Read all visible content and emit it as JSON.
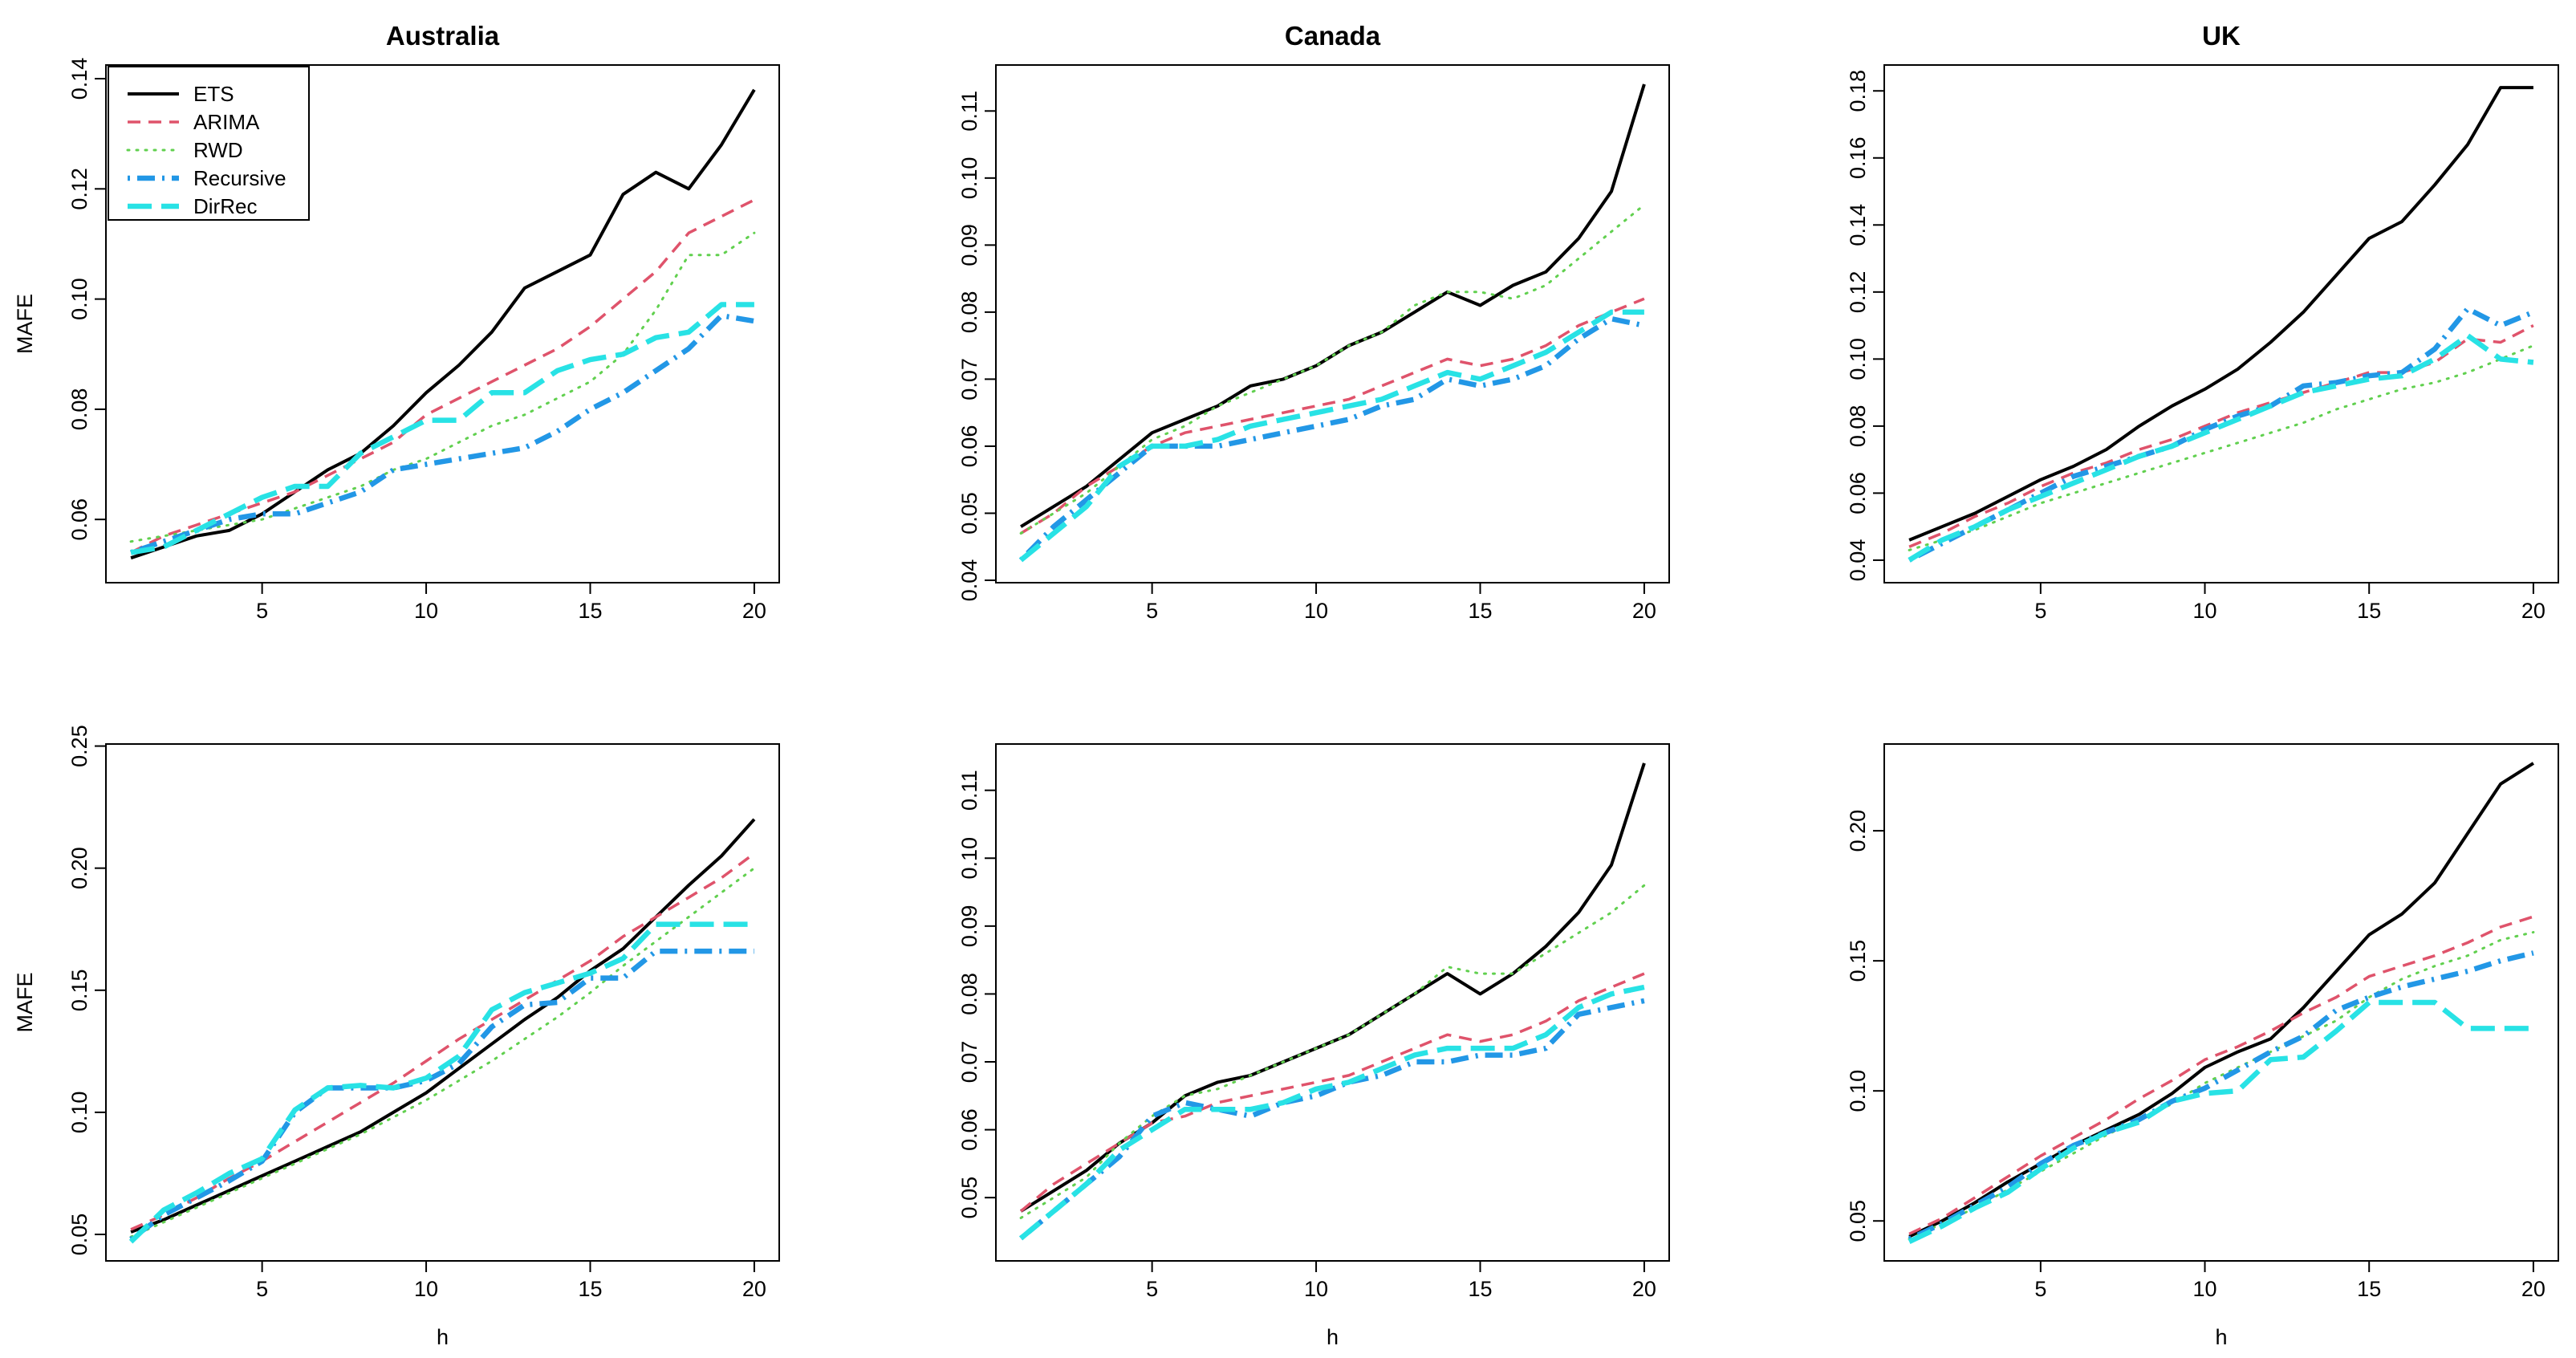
{
  "figure": {
    "ylabel": "MAFE",
    "xlabel": "h"
  },
  "legend": {
    "entries": [
      {
        "name": "ETS",
        "color": "#000000",
        "dash": "solid"
      },
      {
        "name": "ARIMA",
        "color": "#DF536B",
        "dash": "dashed"
      },
      {
        "name": "RWD",
        "color": "#61D04F",
        "dash": "dotted"
      },
      {
        "name": "Recursive",
        "color": "#2297E6",
        "dash": "dotdash"
      },
      {
        "name": "DirRec",
        "color": "#28E2E5",
        "dash": "longdash"
      }
    ]
  },
  "chart_data": [
    {
      "type": "line",
      "title": "Australia",
      "xlabel": "",
      "ylabel": "MAFE",
      "x": [
        1,
        2,
        3,
        4,
        5,
        6,
        7,
        8,
        9,
        10,
        11,
        12,
        13,
        14,
        15,
        16,
        17,
        18,
        19,
        20
      ],
      "xlim": [
        1,
        20
      ],
      "xticks": [
        "5",
        "10",
        "15",
        "20"
      ],
      "ylim": [
        0.052,
        0.139
      ],
      "yticks": [
        "0.06",
        "0.08",
        "0.10",
        "0.12",
        "0.14"
      ],
      "legend": true,
      "series": [
        {
          "name": "ETS",
          "values": [
            0.053,
            0.055,
            0.057,
            0.058,
            0.061,
            0.065,
            0.069,
            0.072,
            0.077,
            0.083,
            0.088,
            0.094,
            0.102,
            0.105,
            0.108,
            0.119,
            0.123,
            0.12,
            0.128,
            0.138
          ]
        },
        {
          "name": "ARIMA",
          "values": [
            0.054,
            0.057,
            0.059,
            0.061,
            0.063,
            0.065,
            0.068,
            0.071,
            0.074,
            0.079,
            0.082,
            0.085,
            0.088,
            0.091,
            0.095,
            0.1,
            0.105,
            0.112,
            0.115,
            0.118
          ]
        },
        {
          "name": "RWD",
          "values": [
            0.056,
            0.057,
            0.058,
            0.059,
            0.06,
            0.062,
            0.064,
            0.066,
            0.069,
            0.071,
            0.074,
            0.077,
            0.079,
            0.082,
            0.085,
            0.09,
            0.098,
            0.108,
            0.108,
            0.112
          ]
        },
        {
          "name": "Recursive",
          "values": [
            0.054,
            0.056,
            0.058,
            0.06,
            0.061,
            0.061,
            0.063,
            0.065,
            0.069,
            0.07,
            0.071,
            0.072,
            0.073,
            0.076,
            0.08,
            0.083,
            0.087,
            0.091,
            0.097,
            0.096
          ]
        },
        {
          "name": "DirRec",
          "values": [
            0.054,
            0.055,
            0.058,
            0.061,
            0.064,
            0.066,
            0.066,
            0.072,
            0.075,
            0.078,
            0.078,
            0.083,
            0.083,
            0.087,
            0.089,
            0.09,
            0.093,
            0.094,
            0.099,
            0.099
          ]
        }
      ]
    },
    {
      "type": "line",
      "title": "Canada",
      "xlabel": "",
      "ylabel": "",
      "x": [
        1,
        2,
        3,
        4,
        5,
        6,
        7,
        8,
        9,
        10,
        11,
        12,
        13,
        14,
        15,
        16,
        17,
        18,
        19,
        20
      ],
      "xlim": [
        1,
        20
      ],
      "xticks": [
        "5",
        "10",
        "15",
        "20"
      ],
      "ylim": [
        0.0425,
        0.114
      ],
      "yticks": [
        "0.04",
        "0.05",
        "0.06",
        "0.07",
        "0.08",
        "0.09",
        "0.10",
        "0.11"
      ],
      "legend": false,
      "series": [
        {
          "name": "ETS",
          "values": [
            0.048,
            0.051,
            0.054,
            0.058,
            0.062,
            0.064,
            0.066,
            0.069,
            0.07,
            0.072,
            0.075,
            0.077,
            0.08,
            0.083,
            0.081,
            0.084,
            0.086,
            0.091,
            0.098,
            0.114
          ]
        },
        {
          "name": "ARIMA",
          "values": [
            0.047,
            0.05,
            0.054,
            0.057,
            0.06,
            0.062,
            0.063,
            0.064,
            0.065,
            0.066,
            0.067,
            0.069,
            0.071,
            0.073,
            0.072,
            0.073,
            0.075,
            0.078,
            0.08,
            0.082
          ]
        },
        {
          "name": "RWD",
          "values": [
            0.047,
            0.05,
            0.053,
            0.057,
            0.061,
            0.063,
            0.066,
            0.068,
            0.07,
            0.072,
            0.075,
            0.077,
            0.081,
            0.083,
            0.083,
            0.082,
            0.084,
            0.088,
            0.092,
            0.096
          ]
        },
        {
          "name": "Recursive",
          "values": [
            0.043,
            0.048,
            0.052,
            0.056,
            0.06,
            0.06,
            0.06,
            0.061,
            0.062,
            0.063,
            0.064,
            0.066,
            0.067,
            0.07,
            0.069,
            0.07,
            0.072,
            0.076,
            0.079,
            0.078
          ]
        },
        {
          "name": "DirRec",
          "values": [
            0.043,
            0.047,
            0.051,
            0.057,
            0.06,
            0.06,
            0.061,
            0.063,
            0.064,
            0.065,
            0.066,
            0.067,
            0.069,
            0.071,
            0.07,
            0.072,
            0.074,
            0.077,
            0.08,
            0.08
          ]
        }
      ]
    },
    {
      "type": "line",
      "title": "UK",
      "xlabel": "",
      "ylabel": "",
      "x": [
        1,
        2,
        3,
        4,
        5,
        6,
        7,
        8,
        9,
        10,
        11,
        12,
        13,
        14,
        15,
        16,
        17,
        18,
        19,
        20
      ],
      "xlim": [
        1,
        20
      ],
      "xticks": [
        "5",
        "10",
        "15",
        "20"
      ],
      "ylim": [
        0.039,
        0.182
      ],
      "yticks": [
        "0.04",
        "0.06",
        "0.08",
        "0.10",
        "0.12",
        "0.14",
        "0.16",
        "0.18"
      ],
      "legend": false,
      "series": [
        {
          "name": "ETS",
          "values": [
            0.046,
            0.05,
            0.054,
            0.059,
            0.064,
            0.068,
            0.073,
            0.08,
            0.086,
            0.091,
            0.097,
            0.105,
            0.114,
            0.125,
            0.136,
            0.141,
            0.152,
            0.164,
            0.181,
            0.181
          ]
        },
        {
          "name": "ARIMA",
          "values": [
            0.044,
            0.048,
            0.053,
            0.057,
            0.062,
            0.066,
            0.069,
            0.073,
            0.076,
            0.08,
            0.084,
            0.087,
            0.09,
            0.093,
            0.096,
            0.096,
            0.099,
            0.106,
            0.105,
            0.11
          ]
        },
        {
          "name": "RWD",
          "values": [
            0.043,
            0.046,
            0.049,
            0.053,
            0.057,
            0.06,
            0.063,
            0.066,
            0.069,
            0.072,
            0.075,
            0.078,
            0.081,
            0.085,
            0.088,
            0.091,
            0.093,
            0.096,
            0.1,
            0.104
          ]
        },
        {
          "name": "Recursive",
          "values": [
            0.04,
            0.045,
            0.05,
            0.055,
            0.06,
            0.065,
            0.068,
            0.071,
            0.074,
            0.079,
            0.083,
            0.086,
            0.092,
            0.093,
            0.095,
            0.096,
            0.103,
            0.115,
            0.11,
            0.114
          ]
        },
        {
          "name": "DirRec",
          "values": [
            0.04,
            0.046,
            0.05,
            0.055,
            0.059,
            0.063,
            0.067,
            0.071,
            0.074,
            0.078,
            0.082,
            0.086,
            0.09,
            0.092,
            0.094,
            0.095,
            0.1,
            0.107,
            0.1,
            0.099
          ]
        }
      ]
    },
    {
      "type": "line",
      "title": "",
      "xlabel": "h",
      "ylabel": "MAFE",
      "x": [
        1,
        2,
        3,
        4,
        5,
        6,
        7,
        8,
        9,
        10,
        11,
        12,
        13,
        14,
        15,
        16,
        17,
        18,
        19,
        20
      ],
      "xlim": [
        1,
        20
      ],
      "xticks": [
        "5",
        "10",
        "15",
        "20"
      ],
      "ylim": [
        0.047,
        0.243
      ],
      "yticks": [
        "0.05",
        "0.10",
        "0.15",
        "0.20",
        "0.25"
      ],
      "legend": false,
      "series": [
        {
          "name": "ETS",
          "values": [
            0.051,
            0.056,
            0.062,
            0.068,
            0.074,
            0.08,
            0.086,
            0.092,
            0.1,
            0.108,
            0.118,
            0.128,
            0.138,
            0.147,
            0.158,
            0.167,
            0.18,
            0.193,
            0.205,
            0.22
          ]
        },
        {
          "name": "ARIMA",
          "values": [
            0.052,
            0.058,
            0.065,
            0.073,
            0.08,
            0.088,
            0.096,
            0.104,
            0.112,
            0.121,
            0.13,
            0.138,
            0.146,
            0.154,
            0.162,
            0.172,
            0.18,
            0.188,
            0.196,
            0.206
          ]
        },
        {
          "name": "RWD",
          "values": [
            0.049,
            0.055,
            0.061,
            0.067,
            0.073,
            0.079,
            0.085,
            0.091,
            0.098,
            0.105,
            0.113,
            0.121,
            0.13,
            0.139,
            0.149,
            0.16,
            0.17,
            0.18,
            0.19,
            0.2
          ]
        },
        {
          "name": "Recursive",
          "values": [
            0.048,
            0.058,
            0.065,
            0.072,
            0.08,
            0.1,
            0.11,
            0.11,
            0.11,
            0.113,
            0.12,
            0.135,
            0.144,
            0.145,
            0.155,
            0.155,
            0.166,
            0.166,
            0.166,
            0.166
          ]
        },
        {
          "name": "DirRec",
          "values": [
            0.047,
            0.06,
            0.067,
            0.075,
            0.081,
            0.101,
            0.11,
            0.111,
            0.11,
            0.114,
            0.123,
            0.142,
            0.149,
            0.153,
            0.157,
            0.163,
            0.177,
            0.177,
            0.177,
            0.177
          ]
        }
      ]
    },
    {
      "type": "line",
      "title": "",
      "xlabel": "h",
      "ylabel": "",
      "x": [
        1,
        2,
        3,
        4,
        5,
        6,
        7,
        8,
        9,
        10,
        11,
        12,
        13,
        14,
        15,
        16,
        17,
        18,
        19,
        20
      ],
      "xlim": [
        1,
        20
      ],
      "xticks": [
        "5",
        "10",
        "15",
        "20"
      ],
      "ylim": [
        0.0435,
        0.114
      ],
      "yticks": [
        "0.05",
        "0.06",
        "0.07",
        "0.08",
        "0.09",
        "0.10",
        "0.11"
      ],
      "legend": false,
      "series": [
        {
          "name": "ETS",
          "values": [
            0.048,
            0.051,
            0.054,
            0.058,
            0.061,
            0.065,
            0.067,
            0.068,
            0.07,
            0.072,
            0.074,
            0.077,
            0.08,
            0.083,
            0.08,
            0.083,
            0.087,
            0.092,
            0.099,
            0.114
          ]
        },
        {
          "name": "ARIMA",
          "values": [
            0.048,
            0.052,
            0.055,
            0.058,
            0.061,
            0.062,
            0.064,
            0.065,
            0.066,
            0.067,
            0.068,
            0.07,
            0.072,
            0.074,
            0.073,
            0.074,
            0.076,
            0.079,
            0.081,
            0.083
          ]
        },
        {
          "name": "RWD",
          "values": [
            0.047,
            0.05,
            0.053,
            0.058,
            0.062,
            0.065,
            0.066,
            0.068,
            0.07,
            0.072,
            0.074,
            0.077,
            0.08,
            0.084,
            0.083,
            0.083,
            0.086,
            0.089,
            0.092,
            0.096
          ]
        },
        {
          "name": "Recursive",
          "values": [
            0.044,
            0.048,
            0.052,
            0.056,
            0.062,
            0.064,
            0.063,
            0.062,
            0.064,
            0.065,
            0.067,
            0.068,
            0.07,
            0.07,
            0.071,
            0.071,
            0.072,
            0.077,
            0.078,
            0.079
          ]
        },
        {
          "name": "DirRec",
          "values": [
            0.044,
            0.048,
            0.052,
            0.057,
            0.06,
            0.063,
            0.063,
            0.063,
            0.064,
            0.066,
            0.067,
            0.069,
            0.071,
            0.072,
            0.072,
            0.072,
            0.074,
            0.078,
            0.08,
            0.081
          ]
        }
      ]
    },
    {
      "type": "line",
      "title": "",
      "xlabel": "h",
      "ylabel": "",
      "x": [
        1,
        2,
        3,
        4,
        5,
        6,
        7,
        8,
        9,
        10,
        11,
        12,
        13,
        14,
        15,
        16,
        17,
        18,
        19,
        20
      ],
      "xlim": [
        1,
        20
      ],
      "xticks": [
        "5",
        "10",
        "15",
        "20"
      ],
      "ylim": [
        0.042,
        0.226
      ],
      "yticks": [
        "0.05",
        "0.10",
        "0.15",
        "0.20"
      ],
      "legend": false,
      "series": [
        {
          "name": "ETS",
          "values": [
            0.044,
            0.05,
            0.057,
            0.065,
            0.072,
            0.079,
            0.085,
            0.091,
            0.099,
            0.109,
            0.115,
            0.12,
            0.132,
            0.146,
            0.16,
            0.168,
            0.18,
            0.199,
            0.218,
            0.226
          ]
        },
        {
          "name": "ARIMA",
          "values": [
            0.045,
            0.051,
            0.059,
            0.067,
            0.075,
            0.082,
            0.089,
            0.097,
            0.104,
            0.112,
            0.117,
            0.123,
            0.13,
            0.136,
            0.144,
            0.148,
            0.152,
            0.157,
            0.163,
            0.167
          ]
        },
        {
          "name": "RWD",
          "values": [
            0.043,
            0.049,
            0.055,
            0.062,
            0.069,
            0.076,
            0.083,
            0.089,
            0.095,
            0.103,
            0.109,
            0.115,
            0.121,
            0.127,
            0.136,
            0.143,
            0.148,
            0.152,
            0.158,
            0.161
          ]
        },
        {
          "name": "Recursive",
          "values": [
            0.043,
            0.049,
            0.056,
            0.063,
            0.072,
            0.079,
            0.084,
            0.089,
            0.096,
            0.101,
            0.108,
            0.115,
            0.121,
            0.131,
            0.136,
            0.14,
            0.143,
            0.146,
            0.15,
            0.153
          ]
        },
        {
          "name": "DirRec",
          "values": [
            0.042,
            0.048,
            0.055,
            0.061,
            0.07,
            0.078,
            0.084,
            0.088,
            0.096,
            0.099,
            0.1,
            0.112,
            0.113,
            0.123,
            0.134,
            0.134,
            0.134,
            0.124,
            0.124,
            0.124
          ]
        }
      ]
    }
  ]
}
